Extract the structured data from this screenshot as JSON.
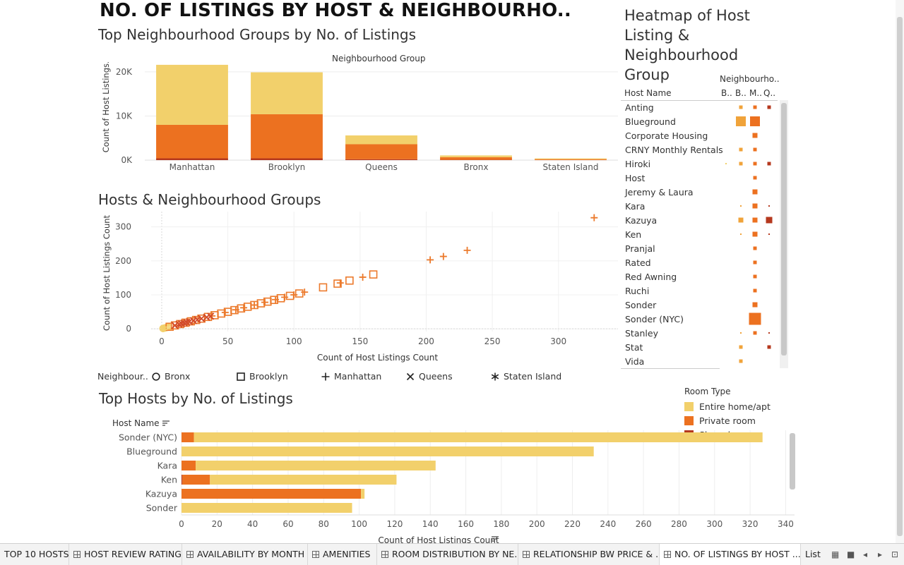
{
  "page": {
    "title": "NO. OF LISTINGS BY HOST & NEIGHBOURHO.."
  },
  "colors": {
    "entire_home": "#F2D06B",
    "private_room": "#EC7120",
    "shared_room": "#B5381E",
    "mid_orange": "#F0A33A",
    "scatter_orange": "#EC7A2C",
    "scatter_red": "#D24A2A",
    "scatter_yellow": "#F2D06B"
  },
  "bar_chart": {
    "title": "Top Neighbourhood Groups by No. of Listings",
    "header": "Neighbourhood Group",
    "ylabel": "Count of Host Listings..",
    "yticks": [
      "20K",
      "10K",
      "0K"
    ]
  },
  "scatter_chart": {
    "title": "Hosts & Neighbourhood Groups",
    "xlabel": "Count of Host Listings Count",
    "ylabel": "Count of Host Listings Count",
    "legend_title": "Neighbour..",
    "legend": [
      {
        "label": "Bronx",
        "shape": "circle"
      },
      {
        "label": "Brooklyn",
        "shape": "square"
      },
      {
        "label": "Manhattan",
        "shape": "plus"
      },
      {
        "label": "Queens",
        "shape": "cross"
      },
      {
        "label": "Staten Island",
        "shape": "asterisk"
      }
    ]
  },
  "heatmap": {
    "title_lines": [
      "Heatmap of Host",
      "Listing &",
      "Neighbourhood Group"
    ],
    "col_group_header": "Neighbourho..",
    "row_header": "Host Name",
    "columns": [
      "B..",
      "B..",
      "M..",
      "Q.."
    ],
    "rows": [
      {
        "name": "Anting",
        "cells": [
          0,
          2,
          2,
          2
        ]
      },
      {
        "name": "Blueground",
        "cells": [
          0,
          5,
          5,
          0
        ]
      },
      {
        "name": "Corporate Housing",
        "cells": [
          0,
          0,
          3,
          0
        ]
      },
      {
        "name": "CRNY Monthly Rentals",
        "cells": [
          0,
          2,
          2,
          0
        ]
      },
      {
        "name": "Hiroki",
        "cells": [
          1,
          2,
          2,
          2
        ]
      },
      {
        "name": "Host",
        "cells": [
          0,
          0,
          2,
          0
        ]
      },
      {
        "name": "Jeremy & Laura",
        "cells": [
          0,
          0,
          3,
          0
        ]
      },
      {
        "name": "Kara",
        "cells": [
          0,
          1,
          3,
          1
        ]
      },
      {
        "name": "Kazuya",
        "cells": [
          0,
          3,
          3,
          4
        ]
      },
      {
        "name": "Ken",
        "cells": [
          0,
          1,
          3,
          1
        ]
      },
      {
        "name": "Pranjal",
        "cells": [
          0,
          0,
          2,
          0
        ]
      },
      {
        "name": "Rated",
        "cells": [
          0,
          0,
          2,
          0
        ]
      },
      {
        "name": "Red Awning",
        "cells": [
          0,
          0,
          2,
          0
        ]
      },
      {
        "name": "Ruchi",
        "cells": [
          0,
          0,
          2,
          0
        ]
      },
      {
        "name": "Sonder",
        "cells": [
          0,
          0,
          3,
          0
        ]
      },
      {
        "name": "Sonder (NYC)",
        "cells": [
          0,
          0,
          6,
          0
        ]
      },
      {
        "name": "Stanley",
        "cells": [
          0,
          1,
          2,
          1
        ]
      },
      {
        "name": "Stat",
        "cells": [
          0,
          2,
          0,
          2
        ]
      },
      {
        "name": "Vida",
        "cells": [
          0,
          2,
          0,
          0
        ]
      }
    ]
  },
  "room_legend": {
    "title": "Room Type",
    "items": [
      "Entire home/apt",
      "Private room",
      "Shared room"
    ]
  },
  "hbar_chart": {
    "title": "Top Hosts by No. of Listings",
    "row_header": "Host Name",
    "xlabel": "Count of Host Listings Count"
  },
  "chart_data": [
    {
      "type": "bar",
      "title": "Top Neighbourhood Groups by No. of Listings",
      "xlabel": "Neighbourhood Group",
      "ylabel": "Count of Host Listings..",
      "categories": [
        "Manhattan",
        "Brooklyn",
        "Queens",
        "Bronx",
        "Staten Island"
      ],
      "stacked": true,
      "series": [
        {
          "name": "Shared room",
          "values": [
            400,
            400,
            200,
            60,
            10
          ]
        },
        {
          "name": "Private room",
          "values": [
            7600,
            10000,
            3400,
            600,
            200
          ]
        },
        {
          "name": "Entire home/apt",
          "values": [
            13600,
            9500,
            2000,
            400,
            180
          ]
        }
      ],
      "yticks": [
        0,
        10000,
        20000
      ],
      "ylim": [
        0,
        22000
      ]
    },
    {
      "type": "scatter",
      "title": "Hosts & Neighbourhood Groups",
      "xlabel": "Count of Host Listings Count",
      "ylabel": "Count of Host Listings Count",
      "xlim": [
        -8,
        345
      ],
      "ylim": [
        -8,
        345
      ],
      "xticks": [
        0,
        50,
        100,
        150,
        200,
        250,
        300
      ],
      "yticks": [
        0,
        100,
        200,
        300
      ],
      "series": [
        {
          "name": "Bronx",
          "marker": "circle",
          "points": [
            [
              1,
              1
            ],
            [
              2,
              2
            ],
            [
              3,
              3
            ],
            [
              4,
              4
            ],
            [
              5,
              5
            ]
          ]
        },
        {
          "name": "Brooklyn",
          "marker": "square",
          "points": [
            [
              6,
              6
            ],
            [
              10,
              10
            ],
            [
              14,
              14
            ],
            [
              18,
              18
            ],
            [
              22,
              22
            ],
            [
              26,
              26
            ],
            [
              30,
              30
            ],
            [
              35,
              35
            ],
            [
              40,
              40
            ],
            [
              45,
              45
            ],
            [
              50,
              50
            ],
            [
              55,
              55
            ],
            [
              60,
              60
            ],
            [
              65,
              65
            ],
            [
              70,
              70
            ],
            [
              75,
              75
            ],
            [
              80,
              80
            ],
            [
              85,
              85
            ],
            [
              90,
              90
            ],
            [
              97,
              97
            ],
            [
              104,
              104
            ],
            [
              122,
              122
            ],
            [
              133,
              133
            ],
            [
              142,
              142
            ],
            [
              160,
              160
            ]
          ]
        },
        {
          "name": "Manhattan",
          "marker": "plus",
          "points": [
            [
              38,
              38
            ],
            [
              48,
              48
            ],
            [
              56,
              56
            ],
            [
              62,
              62
            ],
            [
              70,
              70
            ],
            [
              78,
              78
            ],
            [
              86,
              86
            ],
            [
              93,
              93
            ],
            [
              100,
              100
            ],
            [
              108,
              108
            ],
            [
              135,
              135
            ],
            [
              152,
              152
            ],
            [
              203,
              203
            ],
            [
              213,
              213
            ],
            [
              231,
              231
            ],
            [
              327,
              327
            ]
          ]
        },
        {
          "name": "Queens",
          "marker": "cross",
          "points": [
            [
              10,
              10
            ],
            [
              13,
              13
            ],
            [
              15,
              15
            ],
            [
              17,
              17
            ],
            [
              19,
              19
            ],
            [
              21,
              21
            ],
            [
              24,
              24
            ],
            [
              27,
              27
            ],
            [
              30,
              30
            ],
            [
              34,
              34
            ],
            [
              37,
              37
            ]
          ]
        },
        {
          "name": "Staten Island",
          "marker": "asterisk",
          "points": [
            [
              1,
              1
            ],
            [
              2,
              2
            ]
          ]
        }
      ]
    },
    {
      "type": "bar",
      "orientation": "horizontal",
      "title": "Top Hosts by No. of Listings",
      "xlabel": "Count of Host Listings Count",
      "ylabel": "Host Name",
      "categories": [
        "Sonder (NYC)",
        "Blueground",
        "Kara",
        "Ken",
        "Kazuya",
        "Sonder"
      ],
      "stacked": true,
      "series": [
        {
          "name": "Shared room",
          "values": [
            0,
            0,
            0,
            0.5,
            0,
            0
          ]
        },
        {
          "name": "Private room",
          "values": [
            7,
            0,
            8,
            15.5,
            101,
            0
          ]
        },
        {
          "name": "Entire home/apt",
          "values": [
            320,
            232,
            135,
            105,
            2,
            96
          ]
        }
      ],
      "xticks": [
        0,
        20,
        40,
        60,
        80,
        100,
        120,
        140,
        160,
        180,
        200,
        220,
        240,
        260,
        280,
        300,
        320,
        340
      ],
      "xlim": [
        0,
        345
      ]
    }
  ],
  "tabs": [
    {
      "label": "TOP 10 HOSTS",
      "icon": false
    },
    {
      "label": "HOST REVIEW RATING",
      "icon": true
    },
    {
      "label": "AVAILABILITY BY MONTH",
      "icon": true
    },
    {
      "label": "AMENITIES",
      "icon": true
    },
    {
      "label": "ROOM DISTRIBUTION BY NE...",
      "icon": true
    },
    {
      "label": "RELATIONSHIP BW PRICE & ...",
      "icon": true
    },
    {
      "label": "NO. OF LISTINGS BY HOST ...",
      "icon": true,
      "active": true
    },
    {
      "label": "List",
      "icon": false
    }
  ]
}
